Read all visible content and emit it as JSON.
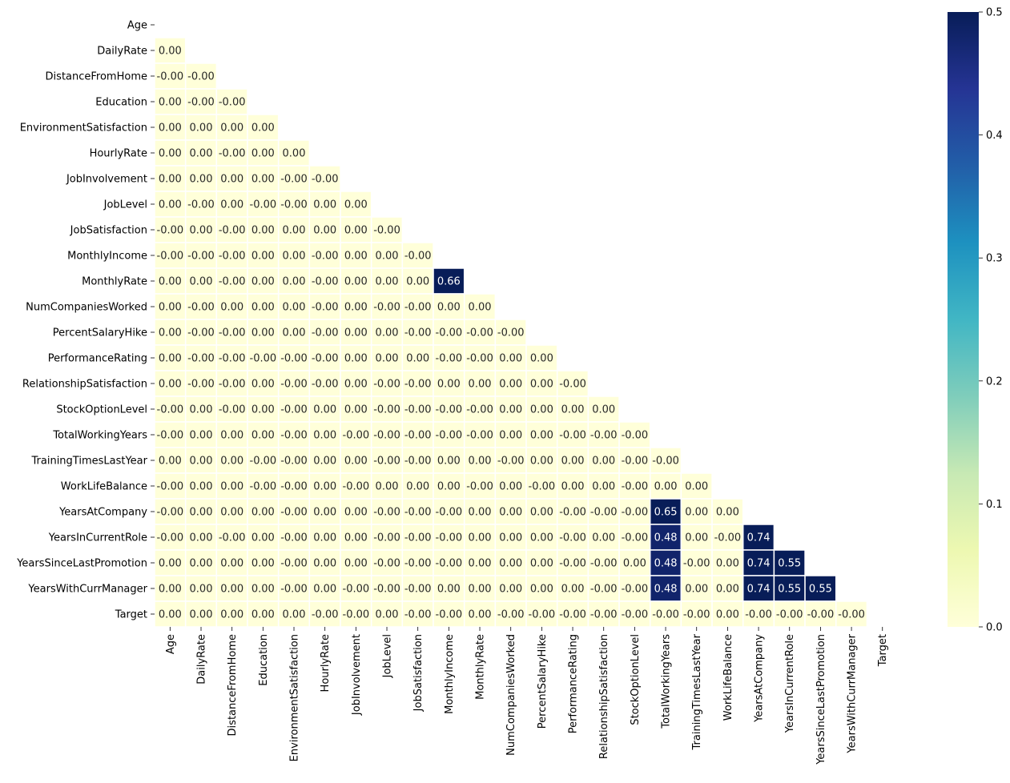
{
  "chart_data": {
    "type": "heatmap",
    "title": "",
    "xlabel": "",
    "ylabel": "",
    "mask": "upper-triangle-including-diagonal",
    "colormap": "YlGnBu",
    "vmin": 0.0,
    "vmax": 0.5,
    "colorbar_ticks": [
      "0.0",
      "0.1",
      "0.2",
      "0.3",
      "0.4",
      "0.5"
    ],
    "colorbar_tick_values": [
      0.0,
      0.1,
      0.2,
      0.3,
      0.4,
      0.5
    ],
    "labels": [
      "Age",
      "DailyRate",
      "DistanceFromHome",
      "Education",
      "EnvironmentSatisfaction",
      "HourlyRate",
      "JobInvolvement",
      "JobLevel",
      "JobSatisfaction",
      "MonthlyIncome",
      "MonthlyRate",
      "NumCompaniesWorked",
      "PercentSalaryHike",
      "PerformanceRating",
      "RelationshipSatisfaction",
      "StockOptionLevel",
      "TotalWorkingYears",
      "TrainingTimesLastYear",
      "WorkLifeBalance",
      "YearsAtCompany",
      "YearsInCurrentRole",
      "YearsSinceLastPromotion",
      "YearsWithCurrManager",
      "Target"
    ],
    "annotations": [
      [],
      [
        "0.00"
      ],
      [
        "-0.00",
        "-0.00"
      ],
      [
        "0.00",
        "-0.00",
        "-0.00"
      ],
      [
        "0.00",
        "0.00",
        "0.00",
        "0.00"
      ],
      [
        "0.00",
        "0.00",
        "-0.00",
        "0.00",
        "0.00"
      ],
      [
        "0.00",
        "0.00",
        "0.00",
        "0.00",
        "-0.00",
        "-0.00"
      ],
      [
        "0.00",
        "-0.00",
        "0.00",
        "-0.00",
        "-0.00",
        "0.00",
        "0.00"
      ],
      [
        "-0.00",
        "0.00",
        "-0.00",
        "0.00",
        "0.00",
        "0.00",
        "0.00",
        "-0.00"
      ],
      [
        "-0.00",
        "-0.00",
        "-0.00",
        "0.00",
        "0.00",
        "-0.00",
        "0.00",
        "0.00",
        "-0.00"
      ],
      [
        "0.00",
        "0.00",
        "-0.00",
        "0.00",
        "0.00",
        "-0.00",
        "0.00",
        "0.00",
        "0.00",
        "0.66"
      ],
      [
        "0.00",
        "-0.00",
        "0.00",
        "0.00",
        "0.00",
        "-0.00",
        "0.00",
        "-0.00",
        "-0.00",
        "0.00",
        "0.00"
      ],
      [
        "0.00",
        "-0.00",
        "-0.00",
        "0.00",
        "0.00",
        "-0.00",
        "0.00",
        "0.00",
        "-0.00",
        "-0.00",
        "-0.00",
        "-0.00"
      ],
      [
        "0.00",
        "-0.00",
        "-0.00",
        "-0.00",
        "-0.00",
        "-0.00",
        "0.00",
        "0.00",
        "0.00",
        "-0.00",
        "-0.00",
        "0.00",
        "0.00"
      ],
      [
        "0.00",
        "-0.00",
        "-0.00",
        "0.00",
        "-0.00",
        "-0.00",
        "0.00",
        "-0.00",
        "-0.00",
        "0.00",
        "0.00",
        "0.00",
        "0.00",
        "-0.00"
      ],
      [
        "-0.00",
        "0.00",
        "-0.00",
        "0.00",
        "-0.00",
        "0.00",
        "0.00",
        "-0.00",
        "-0.00",
        "-0.00",
        "-0.00",
        "0.00",
        "0.00",
        "0.00",
        "0.00"
      ],
      [
        "-0.00",
        "0.00",
        "0.00",
        "0.00",
        "-0.00",
        "0.00",
        "-0.00",
        "-0.00",
        "-0.00",
        "-0.00",
        "-0.00",
        "0.00",
        "0.00",
        "-0.00",
        "-0.00",
        "-0.00"
      ],
      [
        "0.00",
        "0.00",
        "0.00",
        "-0.00",
        "-0.00",
        "0.00",
        "0.00",
        "-0.00",
        "-0.00",
        "0.00",
        "0.00",
        "-0.00",
        "0.00",
        "0.00",
        "0.00",
        "-0.00",
        "-0.00"
      ],
      [
        "-0.00",
        "0.00",
        "0.00",
        "-0.00",
        "-0.00",
        "0.00",
        "-0.00",
        "0.00",
        "0.00",
        "0.00",
        "-0.00",
        "0.00",
        "-0.00",
        "0.00",
        "0.00",
        "-0.00",
        "0.00",
        "0.00"
      ],
      [
        "-0.00",
        "0.00",
        "0.00",
        "0.00",
        "-0.00",
        "0.00",
        "0.00",
        "-0.00",
        "-0.00",
        "-0.00",
        "0.00",
        "0.00",
        "0.00",
        "-0.00",
        "-0.00",
        "-0.00",
        "0.65",
        "0.00",
        "0.00"
      ],
      [
        "-0.00",
        "0.00",
        "-0.00",
        "0.00",
        "-0.00",
        "0.00",
        "0.00",
        "-0.00",
        "-0.00",
        "-0.00",
        "0.00",
        "0.00",
        "0.00",
        "-0.00",
        "0.00",
        "-0.00",
        "0.48",
        "0.00",
        "-0.00",
        "0.74"
      ],
      [
        "0.00",
        "0.00",
        "0.00",
        "0.00",
        "-0.00",
        "0.00",
        "0.00",
        "-0.00",
        "-0.00",
        "-0.00",
        "0.00",
        "0.00",
        "0.00",
        "-0.00",
        "-0.00",
        "0.00",
        "0.48",
        "-0.00",
        "0.00",
        "0.74",
        "0.55"
      ],
      [
        "0.00",
        "0.00",
        "0.00",
        "0.00",
        "-0.00",
        "0.00",
        "-0.00",
        "-0.00",
        "-0.00",
        "0.00",
        "0.00",
        "0.00",
        "0.00",
        "0.00",
        "-0.00",
        "-0.00",
        "0.48",
        "0.00",
        "0.00",
        "0.74",
        "0.55",
        "0.55"
      ],
      [
        "0.00",
        "0.00",
        "0.00",
        "0.00",
        "0.00",
        "-0.00",
        "-0.00",
        "0.00",
        "-0.00",
        "-0.00",
        "0.00",
        "-0.00",
        "-0.00",
        "-0.00",
        "-0.00",
        "-0.00",
        "-0.00",
        "-0.00",
        "0.00",
        "-0.00",
        "-0.00",
        "-0.00",
        "-0.00"
      ]
    ]
  }
}
